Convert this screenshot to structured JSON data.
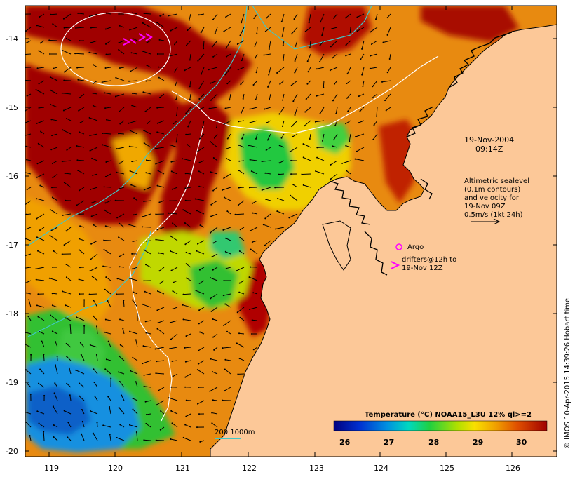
{
  "map": {
    "x_ticks": [
      "119",
      "120",
      "121",
      "122",
      "123",
      "124",
      "125",
      "126"
    ],
    "y_ticks": [
      "-14",
      "-15",
      "-16",
      "-17",
      "-18",
      "-19",
      "-20"
    ],
    "lon_range": [
      118.7,
      126.7
    ],
    "lat_range": [
      -13.6,
      -20.1
    ]
  },
  "annotation": {
    "date": "19-Nov-2004",
    "time": "09:14Z",
    "sealevel_lines": [
      "Altimetric sealevel",
      "(0.1m contours)",
      "and velocity for",
      "19-Nov 09Z",
      "0.5m/s (1kt 24h)"
    ],
    "argo_label": "Argo",
    "drifter_lines": [
      "drifters@12h to",
      "19-Nov 12Z"
    ],
    "isobath_label": "200  1000m"
  },
  "colorbar": {
    "title": "Temperature (°C) NOAA15_L3U 12% ql>=2",
    "ticks": [
      "26",
      "27",
      "28",
      "29",
      "30"
    ],
    "range": [
      25.6,
      30.6
    ]
  },
  "credit": "© IMOS 10-Apr-2015 14:39:26 Hobart time",
  "colors": {
    "land": "#fcc898",
    "sst_hot": "#a00000",
    "sst_warm": "#e06000",
    "sst_mid": "#f0a000",
    "sst_cool": "#30d040",
    "sst_cold": "#1090e0",
    "contour": "#ffffff",
    "isobath": "#40c8c8",
    "drifter": "#ff00ff",
    "vector": "#000000"
  }
}
